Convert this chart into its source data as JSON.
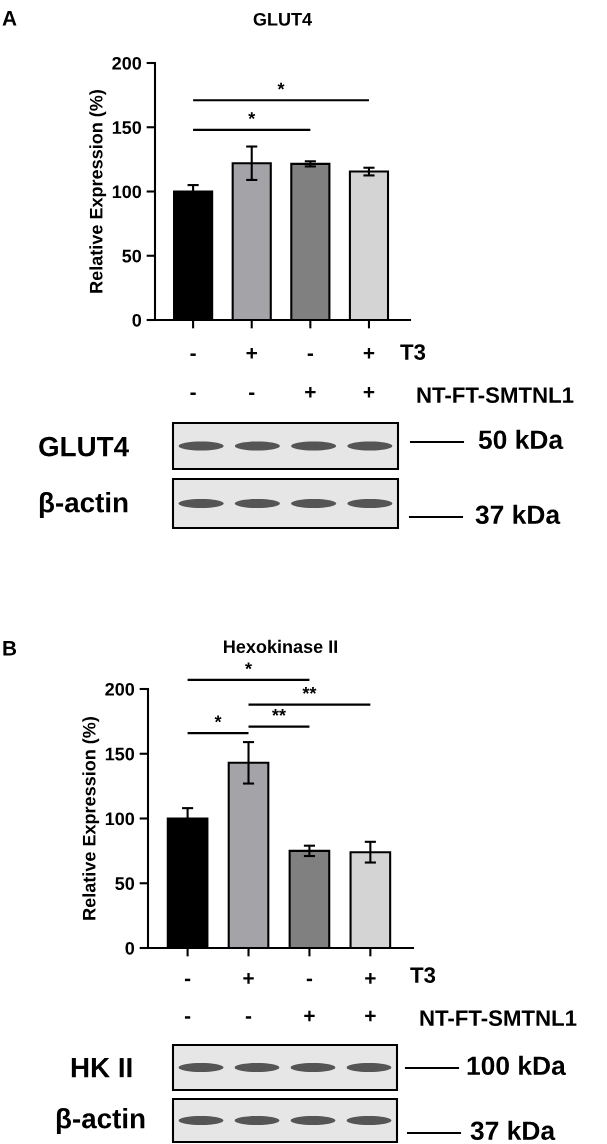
{
  "chart_data": [
    {
      "type": "bar",
      "title": "GLUT4",
      "ylabel": "Relative Expression (%)",
      "categories": [
        "-\n-",
        "+\n-",
        "-\n+",
        "+\n+"
      ],
      "values": [
        100,
        122,
        121.5,
        115.5
      ],
      "errors": [
        5,
        13,
        2,
        3
      ],
      "colors": [
        "#000000",
        "#a4a3a8",
        "#808080",
        "#d4d4d4"
      ],
      "ylim": [
        0,
        200
      ],
      "yticks": [
        0,
        50,
        100,
        150,
        200
      ],
      "grid": false,
      "annotations": [
        "A",
        "*",
        "*",
        "T3",
        "NT-FT-SMTNL1",
        "GLUT4",
        "β-actin",
        "50 kDa",
        "37 kDa"
      ]
    },
    {
      "type": "bar",
      "title": "Hexokinase II",
      "ylabel": "Relative Expression (%)",
      "categories": [
        "-\n-",
        "+\n-",
        "-\n+",
        "+\n+"
      ],
      "values": [
        100,
        143,
        75,
        74
      ],
      "errors": [
        8,
        16,
        4,
        8
      ],
      "colors": [
        "#000000",
        "#a4a3a8",
        "#808080",
        "#d4d4d4"
      ],
      "ylim": [
        0,
        200
      ],
      "yticks": [
        0,
        50,
        100,
        150,
        200
      ],
      "grid": false,
      "annotations": [
        "B",
        "*",
        "**",
        "**",
        "*",
        "T3",
        "NT-FT-SMTNL1",
        "HK II",
        "β-actin",
        "100 kDa",
        "37 kDa"
      ]
    }
  ]
}
